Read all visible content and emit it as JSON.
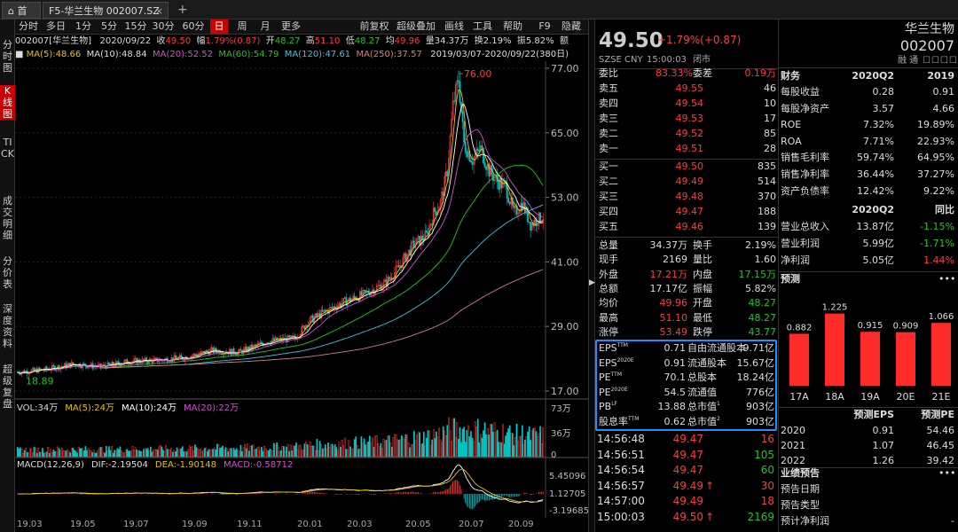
{
  "tabs": {
    "home": "首页",
    "stock": "F5-华兰生物 002007.SZ",
    "close": "×",
    "add": "+"
  },
  "sidebar": [
    "分时图",
    "K线图",
    "TICK",
    "成交明细",
    "分价表",
    "深度资料",
    "超级复盘"
  ],
  "toolbar": {
    "items": [
      "分时",
      "多日",
      "1分",
      "5分",
      "15分",
      "30分",
      "60分",
      "日",
      "周",
      "月",
      "更多"
    ],
    "active": "日",
    "right": [
      "前复权",
      "超级叠加",
      "画线",
      "工具",
      "帮助"
    ],
    "f9": "F9",
    "hide": "隐藏"
  },
  "info": {
    "code": "002007[华兰生物]",
    "date": "2020/09/22",
    "close_l": "收",
    "close": "49.50",
    "chg_l": "幅",
    "chg": "1.79%(0.87)",
    "open_l": "开",
    "open": "48.27",
    "high_l": "高",
    "high": "51.10",
    "low_l": "低",
    "low": "48.27",
    "avg_l": "均",
    "avg": "49.96",
    "vol_l": "量",
    "vol": "34.37万",
    "turn_l": "换",
    "turn": "2.19%",
    "amp_l": "振",
    "amp": "5.82%",
    "amt_l": "额"
  },
  "ma": {
    "ma5": "MA(5):48.66",
    "ma10": "MA(10):48.84",
    "ma20": "MA(20):52.52",
    "ma60": "MA(60):54.79",
    "ma120": "MA(120):47.61",
    "ma250": "MA(250):37.57",
    "range": "2019/03/07-2020/09/22(380日)"
  },
  "price_axis": [
    "77.00",
    "65.00",
    "53.00",
    "41.00",
    "29.00",
    "17.00"
  ],
  "price_marks": {
    "high": "76.00",
    "low": "18.89"
  },
  "vol": {
    "label": "VOL:34万",
    "ma5": "MA(5):24万",
    "ma10": "MA(10):24万",
    "ma20": "MA(20):22万",
    "axis": [
      "73万",
      "36万",
      "0"
    ]
  },
  "macd": {
    "label": "MACD(12,26,9)",
    "dif": "DIF:-2.19504",
    "dea": "DEA:-1.90148",
    "macd": "MACD:-0.58712",
    "axis": [
      "5.45096",
      "1.12705",
      "-3.19685"
    ]
  },
  "xaxis": [
    "19.03",
    "19.05",
    "19.07",
    "19.09",
    "19.11",
    "20.01",
    "20.03",
    "20.05",
    "20.07",
    "20.09"
  ],
  "quote": {
    "price": "49.50",
    "chg": "+1.79%(+0.87)",
    "name": "华兰生物",
    "code": "002007",
    "market": "SZSE CNY",
    "time": "15:00:03",
    "status": "闭市",
    "tags": "融 通",
    "weibi_l": "委比",
    "weibi": "83.33%",
    "weicha_l": "委差",
    "weicha": "0.19万",
    "sells": [
      {
        "l": "卖五",
        "p": "49.55",
        "v": "46"
      },
      {
        "l": "卖四",
        "p": "49.54",
        "v": "10"
      },
      {
        "l": "卖三",
        "p": "49.53",
        "v": "17"
      },
      {
        "l": "卖二",
        "p": "49.52",
        "v": "85"
      },
      {
        "l": "卖一",
        "p": "49.51",
        "v": "28"
      }
    ],
    "buys": [
      {
        "l": "买一",
        "p": "49.50",
        "v": "835"
      },
      {
        "l": "买二",
        "p": "49.49",
        "v": "514"
      },
      {
        "l": "买三",
        "p": "49.48",
        "v": "370"
      },
      {
        "l": "买四",
        "p": "49.47",
        "v": "188"
      },
      {
        "l": "买五",
        "p": "49.46",
        "v": "139"
      }
    ],
    "stats": [
      {
        "a": "总量",
        "b": "34.37万",
        "c": "换手",
        "d": "2.19%",
        "bc": "w",
        "dc": "w"
      },
      {
        "a": "现手",
        "b": "2169",
        "c": "量比",
        "d": "1.60",
        "bc": "w",
        "dc": "w"
      },
      {
        "a": "外盘",
        "b": "17.21万",
        "c": "内盘",
        "d": "17.15万",
        "bc": "r",
        "dc": "g"
      },
      {
        "a": "总额",
        "b": "17.17亿",
        "c": "振幅",
        "d": "5.82%",
        "bc": "w",
        "dc": "w"
      },
      {
        "a": "均价",
        "b": "49.96",
        "c": "开盘",
        "d": "48.27",
        "bc": "r",
        "dc": "g"
      },
      {
        "a": "最高",
        "b": "51.10",
        "c": "最低",
        "d": "48.27",
        "bc": "r",
        "dc": "g"
      },
      {
        "a": "涨停",
        "b": "53.49",
        "c": "跌停",
        "d": "43.77",
        "bc": "r",
        "dc": "g"
      }
    ],
    "val": [
      {
        "a": "EPS",
        "s": "TTM",
        "b": "0.71",
        "c": "自由流通股本",
        "d": "9.71亿"
      },
      {
        "a": "EPS",
        "s": "2020E",
        "b": "0.91",
        "c": "流通股本",
        "d": "15.67亿"
      },
      {
        "a": "PE",
        "s": "TTM",
        "b": "70.1",
        "c": "总股本",
        "d": "18.24亿"
      },
      {
        "a": "PE",
        "s": "2020E",
        "b": "54.5",
        "c": "流通值",
        "d": "776亿"
      },
      {
        "a": "PB",
        "s": "LF",
        "b": "13.88",
        "c": "总市值",
        "cs": "1",
        "d": "903亿"
      },
      {
        "a": "股息率",
        "s": "TTM",
        "b": "0.62",
        "c": "总市值",
        "cs": "2",
        "d": "903亿"
      }
    ],
    "ticks": [
      {
        "t": "14:56:48",
        "p": "49.47",
        "v": "16",
        "vc": "r",
        "arrow": ""
      },
      {
        "t": "14:56:51",
        "p": "49.47",
        "v": "105",
        "vc": "g",
        "arrow": ""
      },
      {
        "t": "14:56:54",
        "p": "49.47",
        "v": "60",
        "vc": "g",
        "arrow": ""
      },
      {
        "t": "14:56:57",
        "p": "49.49",
        "v": "30",
        "vc": "r",
        "arrow": "↑"
      },
      {
        "t": "14:57:00",
        "p": "49.49",
        "v": "18",
        "vc": "r",
        "arrow": ""
      },
      {
        "t": "15:00:03",
        "p": "49.50",
        "v": "2169",
        "vc": "g",
        "arrow": "↑"
      }
    ]
  },
  "fin": {
    "h": [
      "财务",
      "2020Q2",
      "2019"
    ],
    "rows": [
      {
        "a": "每股收益",
        "b": "0.28",
        "c": "0.91"
      },
      {
        "a": "每股净资产",
        "b": "3.57",
        "c": "4.66"
      },
      {
        "a": "ROE",
        "b": "7.32%",
        "c": "19.89%"
      },
      {
        "a": "ROA",
        "b": "7.71%",
        "c": "22.93%"
      },
      {
        "a": "销售毛利率",
        "b": "59.74%",
        "c": "64.95%"
      },
      {
        "a": "销售净利率",
        "b": "36.44%",
        "c": "37.27%"
      },
      {
        "a": "资产负债率",
        "b": "12.42%",
        "c": "9.22%"
      }
    ],
    "h2": [
      "2020Q2",
      "同比"
    ],
    "rows2": [
      {
        "a": "营业总收入",
        "b": "13.87亿",
        "c": "-1.15%",
        "cc": "g"
      },
      {
        "a": "营业利润",
        "b": "5.99亿",
        "c": "-1.71%",
        "cc": "g"
      },
      {
        "a": "净利润",
        "b": "5.05亿",
        "c": "1.44%",
        "cc": "r"
      }
    ],
    "forecast": "预测",
    "more": "•••",
    "fc_bars": {
      "type": "bar",
      "categories": [
        "17A",
        "18A",
        "19A",
        "20E",
        "21E"
      ],
      "values": [
        0.882,
        1.225,
        0.915,
        0.909,
        1.066
      ]
    },
    "fc_labels": [
      "0.882",
      "1.225",
      "0.915",
      "0.909",
      "1.066"
    ],
    "eps_h": [
      "预测EPS",
      "预测PE"
    ],
    "eps_rows": [
      {
        "a": "2020",
        "b": "0.91",
        "c": "54.46"
      },
      {
        "a": "2021",
        "b": "1.07",
        "c": "46.45"
      },
      {
        "a": "2022",
        "b": "1.26",
        "c": "39.42"
      }
    ],
    "notice": "业绩预告",
    "notice_rows": [
      {
        "a": "预告日期",
        "b": ""
      },
      {
        "a": "预告类型",
        "b": ""
      },
      {
        "a": "预计净利润",
        "b": "-"
      }
    ]
  }
}
